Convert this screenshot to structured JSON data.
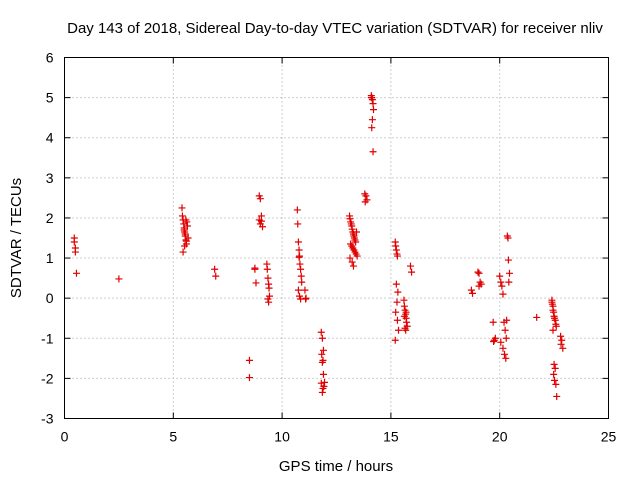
{
  "chart_data": {
    "type": "scatter",
    "title": "Day 143 of 2018, Sidereal Day-to-day VTEC variation (SDTVAR) for receiver nliv",
    "xlabel": "GPS time / hours",
    "ylabel": "SDTVAR / TECUs",
    "xlim": [
      0,
      25
    ],
    "ylim": [
      -3,
      6
    ],
    "xticks": [
      "0",
      "5",
      "10",
      "15",
      "20",
      "25"
    ],
    "yticks": [
      "-3",
      "-2",
      "-1",
      "0",
      "1",
      "2",
      "3",
      "4",
      "5",
      "6"
    ],
    "grid": true,
    "marker": "plus",
    "color": "#e00000",
    "series": [
      {
        "name": "SDTVAR",
        "x": [
          0.45,
          0.45,
          0.5,
          0.5,
          0.55,
          2.5,
          5.4,
          5.42,
          5.45,
          5.48,
          5.5,
          5.52,
          5.55,
          5.58,
          5.6,
          5.62,
          5.65,
          5.68,
          5.45,
          5.5,
          5.55,
          5.6,
          5.52,
          5.58,
          6.9,
          6.95,
          8.5,
          8.5,
          8.75,
          8.8,
          8.75,
          8.95,
          9.0,
          9.05,
          8.95,
          9.0,
          9.05,
          9.1,
          9.3,
          9.32,
          9.35,
          9.38,
          9.4,
          9.42,
          9.35,
          9.38,
          10.7,
          10.72,
          10.75,
          10.78,
          10.8,
          10.82,
          10.85,
          10.88,
          10.9,
          10.75,
          10.8,
          10.85,
          10.78,
          11.05,
          11.1,
          11.08,
          11.8,
          11.85,
          11.9,
          11.82,
          11.88,
          11.85,
          11.9,
          11.95,
          11.92,
          11.88,
          11.85,
          11.8,
          13.1,
          13.12,
          13.15,
          13.18,
          13.2,
          13.22,
          13.25,
          13.28,
          13.3,
          13.32,
          13.35,
          13.38,
          13.15,
          13.2,
          13.25,
          13.3,
          13.35,
          13.4,
          13.45,
          13.12,
          13.22,
          13.28,
          13.42,
          13.8,
          13.85,
          13.9,
          13.82,
          14.1,
          14.12,
          14.15,
          14.18,
          14.2,
          14.15,
          14.12,
          14.18,
          14.1,
          15.2,
          15.22,
          15.25,
          15.28,
          15.3,
          15.25,
          15.32,
          15.28,
          15.22,
          15.3,
          15.35,
          15.2,
          15.6,
          15.62,
          15.65,
          15.68,
          15.7,
          15.72,
          15.75,
          15.65,
          15.7,
          15.62,
          15.68,
          15.9,
          15.95,
          18.7,
          18.75,
          19.0,
          19.05,
          19.1,
          19.15,
          19.05,
          19.7,
          19.75,
          19.8,
          19.72,
          20.0,
          20.05,
          20.1,
          20.15,
          20.2,
          20.25,
          20.3,
          20.05,
          20.15,
          20.22,
          20.28,
          20.32,
          20.35,
          20.38,
          20.4,
          20.45,
          20.42,
          21.7,
          22.4,
          22.42,
          22.45,
          22.48,
          22.5,
          22.52,
          22.55,
          22.58,
          22.6,
          22.45,
          22.5,
          22.55,
          22.48,
          22.52,
          22.58,
          22.62,
          22.4,
          22.45,
          22.8,
          22.85,
          22.9,
          22.82
        ],
        "y": [
          1.5,
          1.4,
          1.25,
          1.15,
          0.62,
          0.48,
          2.25,
          2.05,
          1.95,
          1.85,
          1.75,
          1.65,
          1.55,
          1.45,
          1.35,
          1.9,
          1.8,
          1.5,
          1.15,
          1.7,
          1.6,
          1.42,
          1.3,
          1.95,
          0.72,
          0.55,
          -1.55,
          -1.98,
          0.75,
          0.38,
          0.72,
          2.55,
          2.48,
          2.05,
          1.95,
          1.85,
          1.92,
          1.78,
          0.85,
          0.72,
          0.5,
          0.35,
          0.25,
          0.05,
          -0.02,
          -0.1,
          2.2,
          1.85,
          1.4,
          1.2,
          1.05,
          0.85,
          0.72,
          0.55,
          0.4,
          0.2,
          0.05,
          -0.02,
          1.02,
          0.2,
          0.0,
          -0.02,
          -0.85,
          -1.0,
          -1.3,
          -1.4,
          -1.55,
          -1.6,
          -1.9,
          -2.1,
          -2.2,
          -2.25,
          -2.35,
          -2.12,
          2.05,
          1.98,
          1.9,
          1.85,
          1.8,
          1.72,
          1.65,
          1.6,
          1.55,
          1.5,
          1.45,
          1.4,
          1.35,
          1.3,
          1.25,
          1.2,
          1.15,
          1.1,
          1.05,
          1.0,
          0.9,
          0.8,
          1.65,
          2.6,
          2.55,
          2.45,
          2.4,
          5.05,
          5.0,
          4.95,
          4.85,
          4.7,
          4.45,
          4.25,
          3.65,
          5.0,
          1.4,
          1.3,
          1.2,
          1.1,
          1.05,
          0.35,
          0.15,
          -0.1,
          -0.35,
          -0.55,
          -0.8,
          -1.05,
          -0.05,
          -0.2,
          -0.3,
          -0.4,
          -0.5,
          -0.6,
          -0.7,
          -0.75,
          -0.35,
          -0.45,
          -0.8,
          0.8,
          0.65,
          0.2,
          0.12,
          0.65,
          0.62,
          0.4,
          0.35,
          0.3,
          -0.6,
          -1.05,
          -1.0,
          -1.08,
          0.55,
          0.4,
          0.3,
          0.1,
          -0.6,
          -0.8,
          -1.0,
          -1.1,
          -1.25,
          -1.4,
          -1.5,
          -0.55,
          1.55,
          1.5,
          0.95,
          0.62,
          0.4,
          -0.48,
          -0.05,
          -0.15,
          -0.2,
          -0.35,
          -0.45,
          -0.5,
          -0.55,
          -0.65,
          -0.7,
          -0.8,
          -1.65,
          -1.75,
          -1.9,
          -2.05,
          -2.15,
          -2.45,
          -0.1,
          -0.3,
          -0.95,
          -1.05,
          -1.25,
          -1.15
        ]
      }
    ]
  }
}
